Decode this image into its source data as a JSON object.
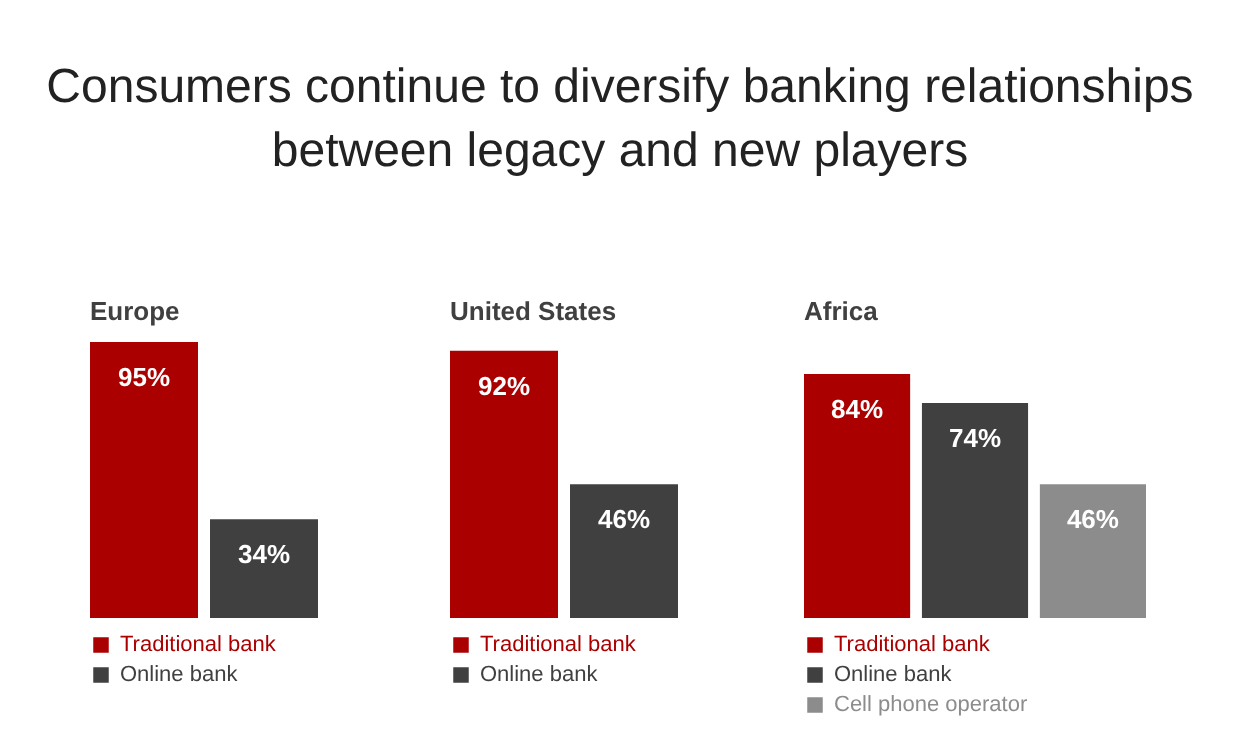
{
  "chart_data": [
    {
      "type": "other",
      "title": "Consumers continue to diversify banking relationships between legacy and new players"
    },
    {
      "type": "bar",
      "title": "Europe",
      "categories": [
        null
      ],
      "legend": "bottom",
      "series": [
        {
          "name": "Traditional bank",
          "color": "#aa0000",
          "values": [
            95
          ],
          "value_labels": [
            "95%"
          ]
        },
        {
          "name": "Online bank",
          "color": "#404040",
          "values": [
            34
          ],
          "value_labels": [
            "34%"
          ]
        }
      ]
    },
    {
      "type": "bar",
      "title": "United States",
      "categories": [
        null
      ],
      "legend": "bottom",
      "series": [
        {
          "name": "Traditional bank",
          "color": "#aa0000",
          "values": [
            92
          ],
          "value_labels": [
            "92%"
          ]
        },
        {
          "name": "Online bank",
          "color": "#404040",
          "values": [
            46
          ],
          "value_labels": [
            "46%"
          ]
        }
      ]
    },
    {
      "type": "bar",
      "title": "Africa",
      "categories": [
        null
      ],
      "legend": "bottom",
      "series": [
        {
          "name": "Traditional bank",
          "color": "#aa0000",
          "values": [
            84
          ],
          "value_labels": [
            "84%"
          ]
        },
        {
          "name": "Online bank",
          "color": "#404040",
          "values": [
            74
          ],
          "value_labels": [
            "74%"
          ]
        },
        {
          "name": "Cell phone operator",
          "color": "#8c8c8c",
          "values": [
            46
          ],
          "value_labels": [
            "46%"
          ]
        }
      ]
    }
  ]
}
